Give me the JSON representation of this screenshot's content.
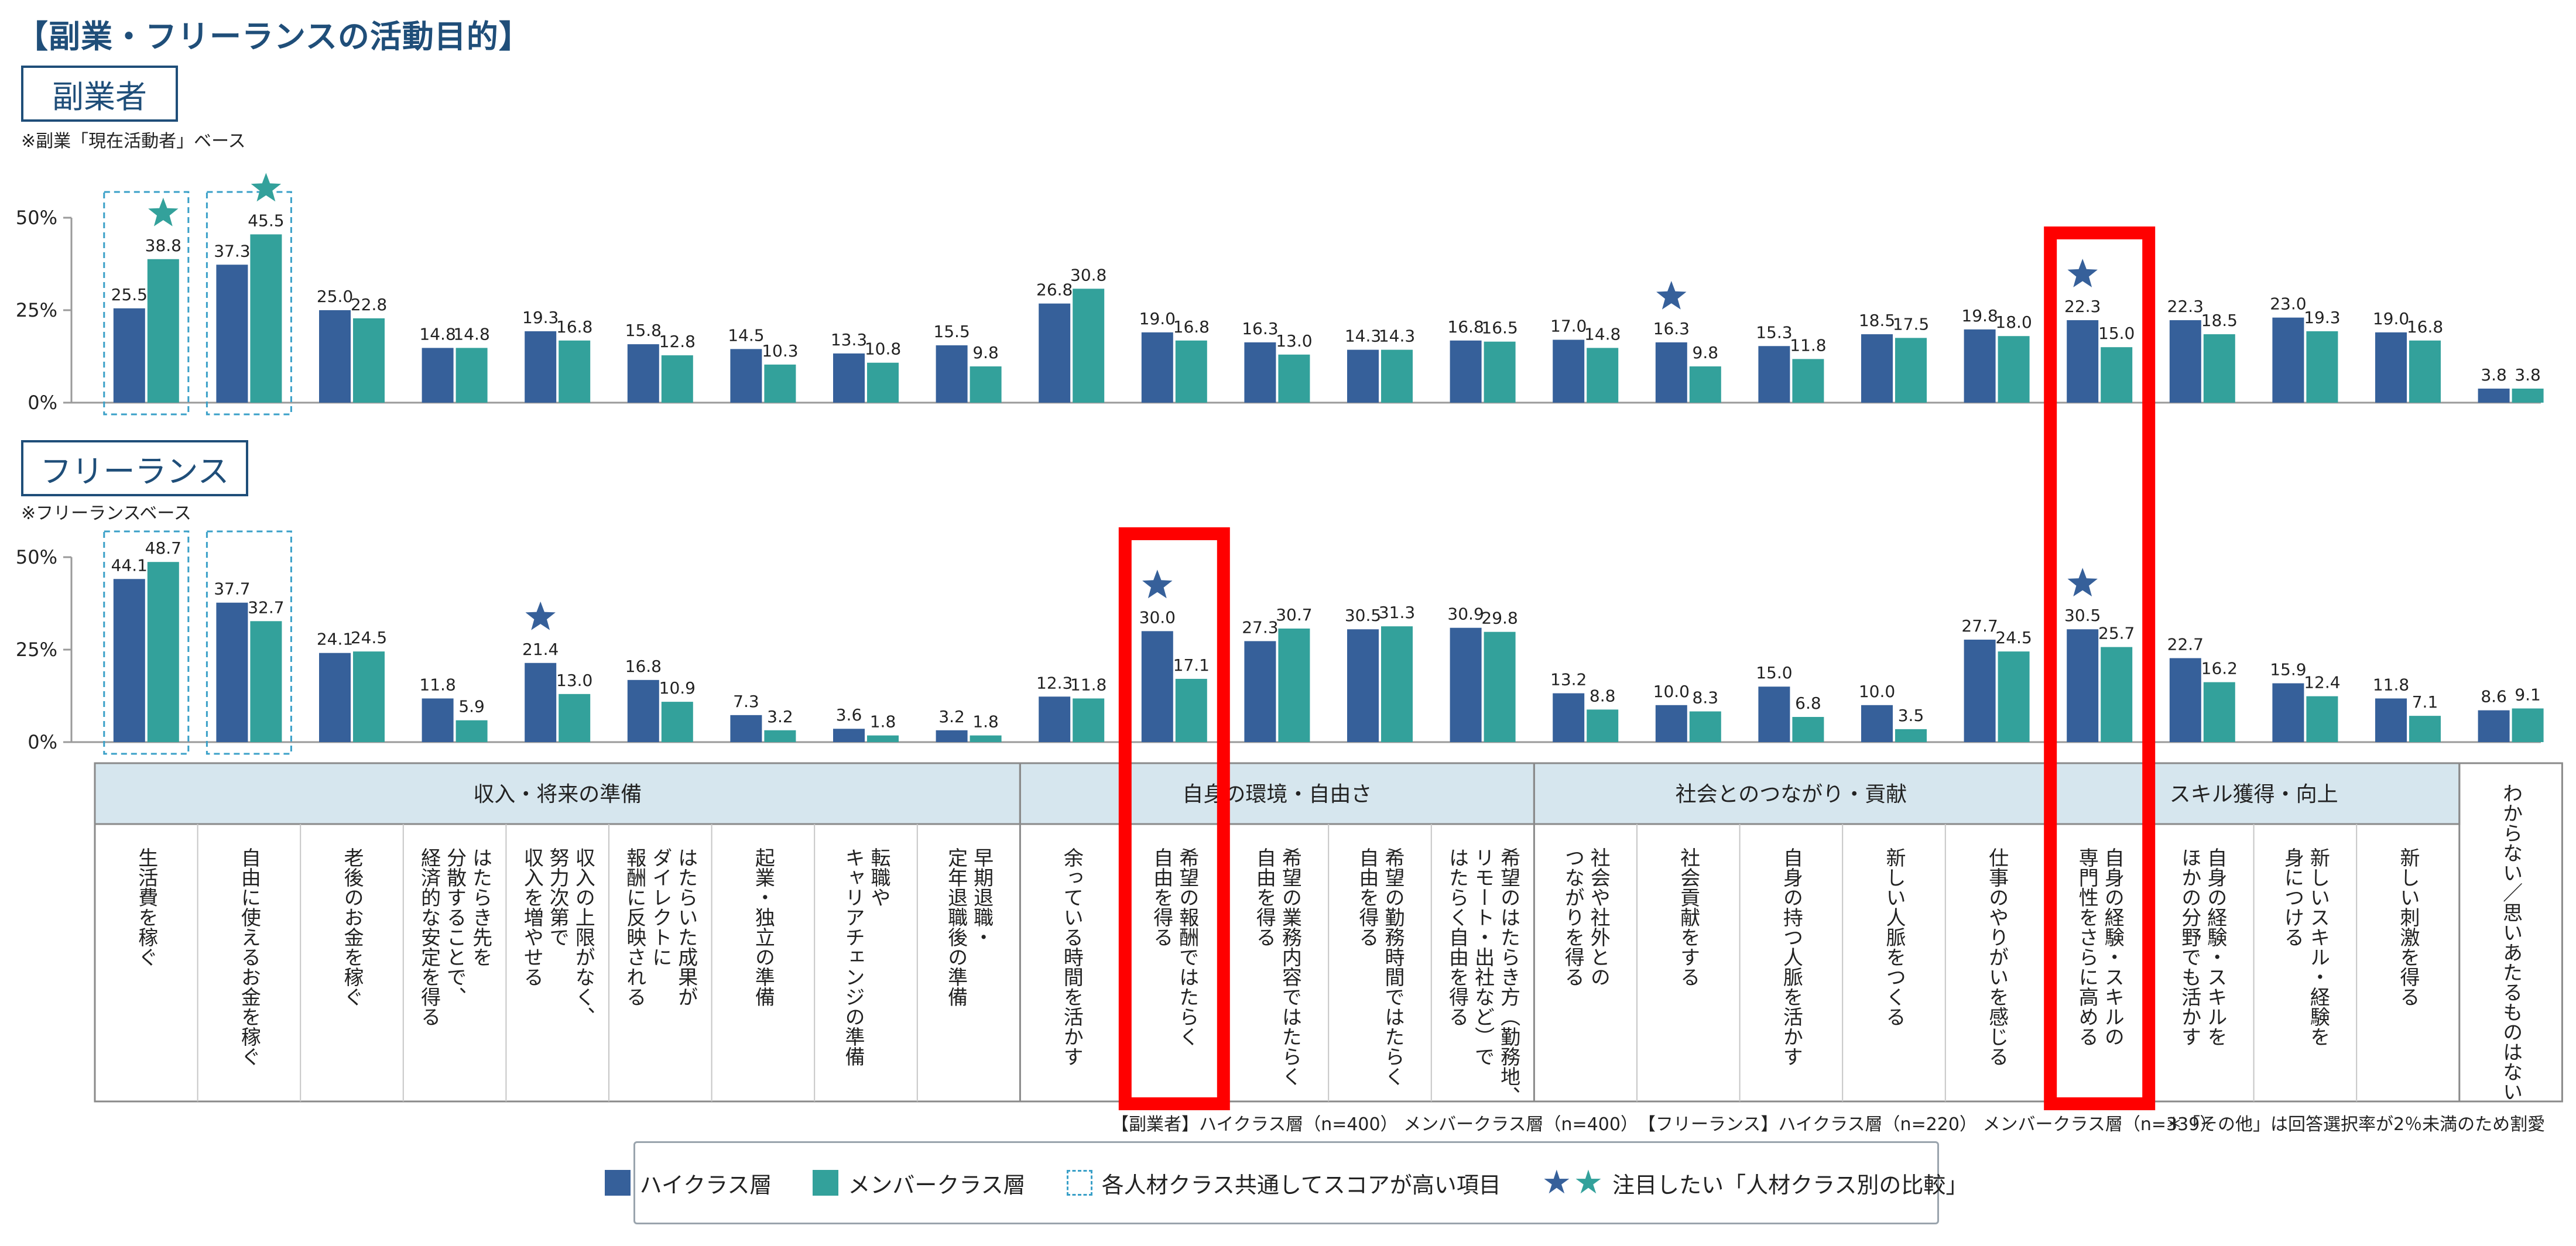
{
  "title": "【副業・フリーランスの活動目的】",
  "colors": {
    "high": "#36609a",
    "member": "#33a19b",
    "accent": "#1f4e79",
    "highlight_red": "#ff0000",
    "dashed": "#3aa0c8",
    "group_header_bg": "#d6e6ee"
  },
  "sections": [
    {
      "label": "副業者",
      "base_note": "※副業「現在活動者」ベース"
    },
    {
      "label": "フリーランス",
      "base_note": "※フリーランスベース"
    }
  ],
  "y_tick_labels": [
    "50%",
    "25%",
    "0%"
  ],
  "groups": [
    {
      "label": "収入・将来の準備"
    },
    {
      "label": "自身の環境・自由さ"
    },
    {
      "label": "社会とのつながり・貢献"
    },
    {
      "label": "スキル獲得・向上"
    }
  ],
  "chart_data": {
    "type": "bar",
    "ylim": [
      0,
      50
    ],
    "categories": [
      "生活費を稼ぐ",
      "自由に使えるお金を稼ぐ",
      "老後のお金を稼ぐ",
      "はたらき先を\n分散することで、\n経済的な安定を得る",
      "収入の上限がなく、\n努力次第で\n収入を増やせる",
      "はたらいた成果が\nダイレクトに\n報酬に反映される",
      "起業・独立の準備",
      "転職や\nキャリアチェンジの準備",
      "早期退職・\n定年退職後の準備",
      "余っている時間を活かす",
      "希望の報酬ではたらく\n自由を得る",
      "希望の業務内容ではたらく\n自由を得る",
      "希望の勤務時間ではたらく\n自由を得る",
      "希望のはたらき方（勤務地、\nリモート・出社など）で\nはたらく自由を得る",
      "社会や社外との\nつながりを得る",
      "社会貢献をする",
      "自身の持つ人脈を活かす",
      "新しい人脈をつくる",
      "仕事のやりがいを感じる",
      "自身の経験・スキルの\n専門性をさらに高める",
      "自身の経験・スキルを\nほかの分野でも活かす",
      "新しいスキル・経験を\n身につける",
      "新しい刺激を得る",
      "わからない／思いあたるものはない"
    ],
    "charts": [
      {
        "section": "副業者",
        "series": [
          {
            "name": "ハイクラス層",
            "values": [
              25.5,
              37.3,
              25.0,
              14.8,
              19.3,
              15.8,
              14.5,
              13.3,
              15.5,
              26.8,
              19.0,
              16.3,
              14.3,
              16.8,
              17.0,
              16.3,
              15.3,
              18.5,
              19.8,
              22.3,
              22.3,
              23.0,
              19.0,
              3.8
            ]
          },
          {
            "name": "メンバークラス層",
            "values": [
              38.8,
              45.5,
              22.8,
              14.8,
              16.8,
              12.8,
              10.3,
              10.8,
              9.8,
              30.8,
              16.8,
              13.0,
              14.3,
              16.5,
              14.8,
              9.8,
              11.8,
              17.5,
              18.0,
              15.0,
              18.5,
              19.3,
              16.8,
              3.8
            ]
          }
        ],
        "dashed_box_categories": [
          0,
          1
        ],
        "stars": [
          {
            "category": 0,
            "series": "メンバークラス層"
          },
          {
            "category": 1,
            "series": "メンバークラス層"
          },
          {
            "category": 15,
            "series": "ハイクラス層"
          },
          {
            "category": 19,
            "series": "ハイクラス層"
          }
        ]
      },
      {
        "section": "フリーランス",
        "series": [
          {
            "name": "ハイクラス層",
            "values": [
              44.1,
              37.7,
              24.1,
              11.8,
              21.4,
              16.8,
              7.3,
              3.6,
              3.2,
              12.3,
              30.0,
              27.3,
              30.5,
              30.9,
              13.2,
              10.0,
              15.0,
              10.0,
              27.7,
              30.5,
              22.7,
              15.9,
              11.8,
              8.6
            ]
          },
          {
            "name": "メンバークラス層",
            "values": [
              48.7,
              32.7,
              24.5,
              5.9,
              13.0,
              10.9,
              3.2,
              1.8,
              1.8,
              11.8,
              17.1,
              30.7,
              31.3,
              29.8,
              8.8,
              8.3,
              6.8,
              3.5,
              24.5,
              25.7,
              16.2,
              12.4,
              7.1,
              9.1
            ]
          }
        ],
        "dashed_box_categories": [
          0,
          1
        ],
        "stars": [
          {
            "category": 4,
            "series": "ハイクラス層"
          },
          {
            "category": 10,
            "series": "ハイクラス層"
          },
          {
            "category": 19,
            "series": "ハイクラス層"
          }
        ]
      }
    ],
    "category_groups": [
      {
        "label": "収入・将来の準備",
        "categories": [
          0,
          1,
          2,
          3,
          4,
          5,
          6,
          7,
          8
        ]
      },
      {
        "label": "自身の環境・自由さ",
        "categories": [
          9,
          10,
          11,
          12,
          13
        ]
      },
      {
        "label": "社会とのつながり・貢献",
        "categories": [
          14,
          15,
          16,
          17,
          18
        ]
      },
      {
        "label": "スキル獲得・向上",
        "categories": [
          19,
          20,
          21,
          22
        ]
      }
    ],
    "red_highlight_categories": [
      10,
      19
    ]
  },
  "footnotes": {
    "sample_sizes": "【副業者】ハイクラス層（n=400） メンバークラス層（n=400）　【フリーランス】ハイクラス層（n=220） メンバークラス層（n=339）",
    "other_note": "＊「その他」は回答選択率が2％未満のため割愛"
  },
  "legend": {
    "high": "ハイクラス層",
    "member": "メンバークラス層",
    "dashed": "各人材クラス共通してスコアが高い項目",
    "star": "注目したい「人材クラス別の比較」"
  }
}
